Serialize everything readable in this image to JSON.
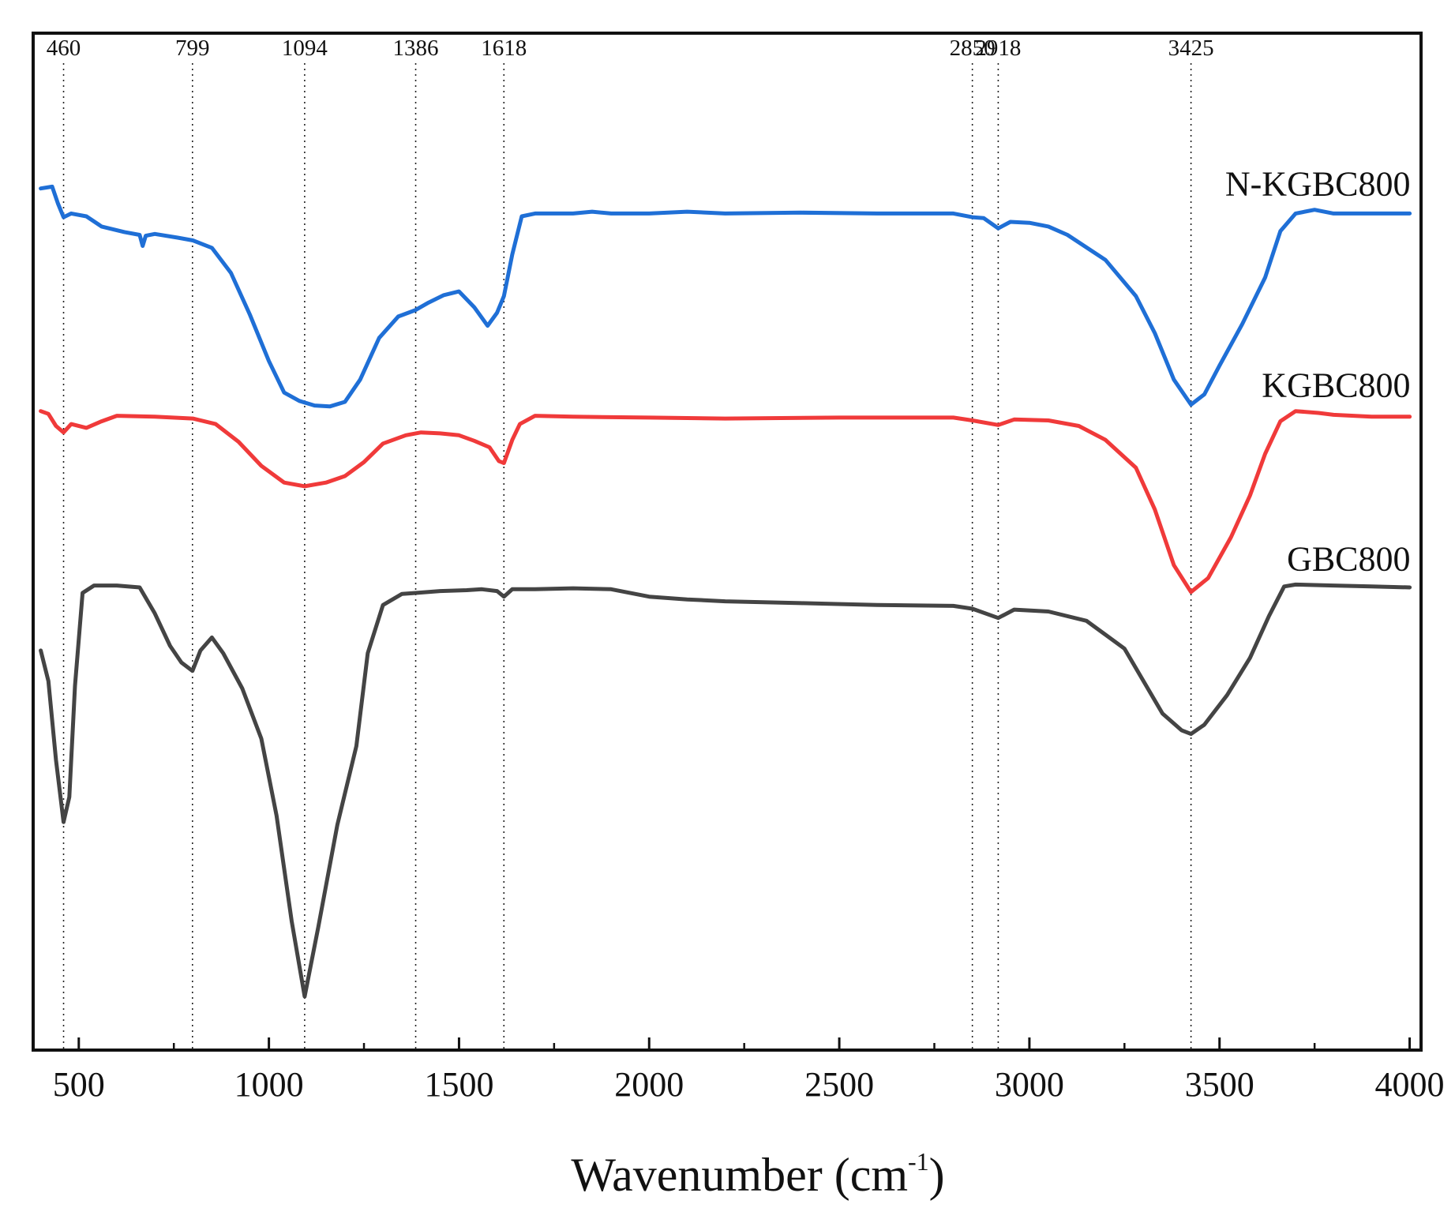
{
  "chart_data": {
    "type": "line",
    "title": "",
    "xlabel": "Wavenumber (cm",
    "xlabel_superscript": "-1",
    "xlabel_close": ")",
    "ylabel": "",
    "xlim": [
      380,
      4030
    ],
    "ylim": [
      0,
      100
    ],
    "xticks": [
      500,
      1000,
      1500,
      2000,
      2500,
      3000,
      3500,
      4000
    ],
    "xtick_labels": [
      "500",
      "1000",
      "1500",
      "2000",
      "2500",
      "3000",
      "3500",
      "4000"
    ],
    "minor_ticks": [
      750,
      1250,
      1750,
      2250,
      2750,
      3250,
      3750
    ],
    "peak_markers": [
      {
        "x": 460,
        "label": "460"
      },
      {
        "x": 799,
        "label": "799"
      },
      {
        "x": 1094,
        "label": "1094"
      },
      {
        "x": 1386,
        "label": "1386"
      },
      {
        "x": 1618,
        "label": "1618"
      },
      {
        "x": 2850,
        "label": "2850"
      },
      {
        "x": 2918,
        "label": "2918"
      },
      {
        "x": 3425,
        "label": "3425"
      }
    ],
    "series": [
      {
        "name": "N-KGBC800",
        "label": "N-KGBC800",
        "color": "#1f6fd6",
        "points": [
          [
            400,
            91.6
          ],
          [
            430,
            91.8
          ],
          [
            445,
            90.0
          ],
          [
            460,
            88.5
          ],
          [
            480,
            88.9
          ],
          [
            520,
            88.6
          ],
          [
            560,
            87.5
          ],
          [
            620,
            86.9
          ],
          [
            660,
            86.6
          ],
          [
            668,
            85.4
          ],
          [
            676,
            86.5
          ],
          [
            700,
            86.7
          ],
          [
            760,
            86.3
          ],
          [
            800,
            86.0
          ],
          [
            850,
            85.2
          ],
          [
            900,
            82.5
          ],
          [
            950,
            78.0
          ],
          [
            1000,
            73.0
          ],
          [
            1040,
            69.6
          ],
          [
            1080,
            68.7
          ],
          [
            1120,
            68.2
          ],
          [
            1160,
            68.1
          ],
          [
            1200,
            68.6
          ],
          [
            1240,
            71.0
          ],
          [
            1290,
            75.5
          ],
          [
            1340,
            77.8
          ],
          [
            1386,
            78.5
          ],
          [
            1420,
            79.3
          ],
          [
            1460,
            80.1
          ],
          [
            1500,
            80.5
          ],
          [
            1540,
            78.8
          ],
          [
            1575,
            76.8
          ],
          [
            1600,
            78.2
          ],
          [
            1618,
            80.0
          ],
          [
            1640,
            84.5
          ],
          [
            1665,
            88.6
          ],
          [
            1700,
            88.9
          ],
          [
            1800,
            88.9
          ],
          [
            1850,
            89.1
          ],
          [
            1900,
            88.9
          ],
          [
            2000,
            88.9
          ],
          [
            2100,
            89.1
          ],
          [
            2200,
            88.9
          ],
          [
            2400,
            89.0
          ],
          [
            2600,
            88.9
          ],
          [
            2800,
            88.9
          ],
          [
            2850,
            88.5
          ],
          [
            2880,
            88.4
          ],
          [
            2918,
            87.3
          ],
          [
            2950,
            88.0
          ],
          [
            3000,
            87.9
          ],
          [
            3050,
            87.5
          ],
          [
            3100,
            86.6
          ],
          [
            3200,
            83.9
          ],
          [
            3280,
            80.0
          ],
          [
            3330,
            76.0
          ],
          [
            3380,
            71.0
          ],
          [
            3425,
            68.3
          ],
          [
            3460,
            69.4
          ],
          [
            3500,
            72.5
          ],
          [
            3560,
            77.0
          ],
          [
            3620,
            82.0
          ],
          [
            3660,
            87.0
          ],
          [
            3700,
            88.9
          ],
          [
            3750,
            89.3
          ],
          [
            3800,
            88.9
          ],
          [
            3900,
            88.9
          ],
          [
            4000,
            88.9
          ]
        ]
      },
      {
        "name": "KGBC800",
        "label": "KGBC800",
        "color": "#f03a3a",
        "points": [
          [
            400,
            67.6
          ],
          [
            420,
            67.3
          ],
          [
            440,
            66.0
          ],
          [
            460,
            65.3
          ],
          [
            480,
            66.2
          ],
          [
            520,
            65.8
          ],
          [
            560,
            66.5
          ],
          [
            600,
            67.1
          ],
          [
            700,
            67.0
          ],
          [
            800,
            66.8
          ],
          [
            860,
            66.2
          ],
          [
            920,
            64.3
          ],
          [
            980,
            61.7
          ],
          [
            1040,
            59.9
          ],
          [
            1094,
            59.5
          ],
          [
            1150,
            59.9
          ],
          [
            1200,
            60.6
          ],
          [
            1250,
            62.1
          ],
          [
            1300,
            64.1
          ],
          [
            1360,
            65.0
          ],
          [
            1400,
            65.3
          ],
          [
            1450,
            65.2
          ],
          [
            1500,
            65.0
          ],
          [
            1540,
            64.4
          ],
          [
            1580,
            63.7
          ],
          [
            1605,
            62.2
          ],
          [
            1618,
            62.0
          ],
          [
            1640,
            64.5
          ],
          [
            1660,
            66.2
          ],
          [
            1700,
            67.1
          ],
          [
            1800,
            67.0
          ],
          [
            2000,
            66.9
          ],
          [
            2200,
            66.8
          ],
          [
            2500,
            66.9
          ],
          [
            2800,
            66.9
          ],
          [
            2850,
            66.6
          ],
          [
            2918,
            66.1
          ],
          [
            2960,
            66.7
          ],
          [
            3050,
            66.6
          ],
          [
            3130,
            66.0
          ],
          [
            3200,
            64.5
          ],
          [
            3280,
            61.5
          ],
          [
            3330,
            57.0
          ],
          [
            3380,
            51.0
          ],
          [
            3425,
            48.1
          ],
          [
            3470,
            49.6
          ],
          [
            3530,
            54.0
          ],
          [
            3580,
            58.5
          ],
          [
            3620,
            63.0
          ],
          [
            3660,
            66.5
          ],
          [
            3700,
            67.6
          ],
          [
            3760,
            67.4
          ],
          [
            3800,
            67.2
          ],
          [
            3900,
            67.0
          ],
          [
            4000,
            67.0
          ]
        ]
      },
      {
        "name": "GBC800",
        "label": "GBC800",
        "color": "#444444",
        "points": [
          [
            400,
            41.8
          ],
          [
            420,
            38.5
          ],
          [
            440,
            30.0
          ],
          [
            460,
            23.3
          ],
          [
            475,
            26.0
          ],
          [
            490,
            38.0
          ],
          [
            510,
            48.0
          ],
          [
            540,
            48.8
          ],
          [
            600,
            48.8
          ],
          [
            660,
            48.6
          ],
          [
            700,
            45.8
          ],
          [
            740,
            42.3
          ],
          [
            770,
            40.5
          ],
          [
            799,
            39.6
          ],
          [
            820,
            41.8
          ],
          [
            850,
            43.2
          ],
          [
            880,
            41.5
          ],
          [
            930,
            37.7
          ],
          [
            980,
            32.3
          ],
          [
            1020,
            24.0
          ],
          [
            1060,
            12.6
          ],
          [
            1094,
            4.5
          ],
          [
            1130,
            12.0
          ],
          [
            1180,
            23.0
          ],
          [
            1230,
            31.5
          ],
          [
            1260,
            41.5
          ],
          [
            1300,
            46.7
          ],
          [
            1350,
            47.9
          ],
          [
            1386,
            48.0
          ],
          [
            1450,
            48.2
          ],
          [
            1520,
            48.3
          ],
          [
            1560,
            48.4
          ],
          [
            1600,
            48.2
          ],
          [
            1618,
            47.6
          ],
          [
            1640,
            48.4
          ],
          [
            1700,
            48.4
          ],
          [
            1800,
            48.5
          ],
          [
            1900,
            48.4
          ],
          [
            2000,
            47.6
          ],
          [
            2100,
            47.3
          ],
          [
            2200,
            47.1
          ],
          [
            2400,
            46.9
          ],
          [
            2600,
            46.7
          ],
          [
            2800,
            46.6
          ],
          [
            2850,
            46.3
          ],
          [
            2918,
            45.3
          ],
          [
            2960,
            46.2
          ],
          [
            3050,
            46.0
          ],
          [
            3150,
            45.0
          ],
          [
            3250,
            42.0
          ],
          [
            3300,
            38.5
          ],
          [
            3350,
            35.0
          ],
          [
            3400,
            33.2
          ],
          [
            3425,
            32.8
          ],
          [
            3460,
            33.8
          ],
          [
            3520,
            37.0
          ],
          [
            3580,
            41.0
          ],
          [
            3630,
            45.5
          ],
          [
            3670,
            48.7
          ],
          [
            3700,
            48.9
          ],
          [
            3800,
            48.8
          ],
          [
            3900,
            48.7
          ],
          [
            4000,
            48.6
          ]
        ]
      }
    ]
  }
}
